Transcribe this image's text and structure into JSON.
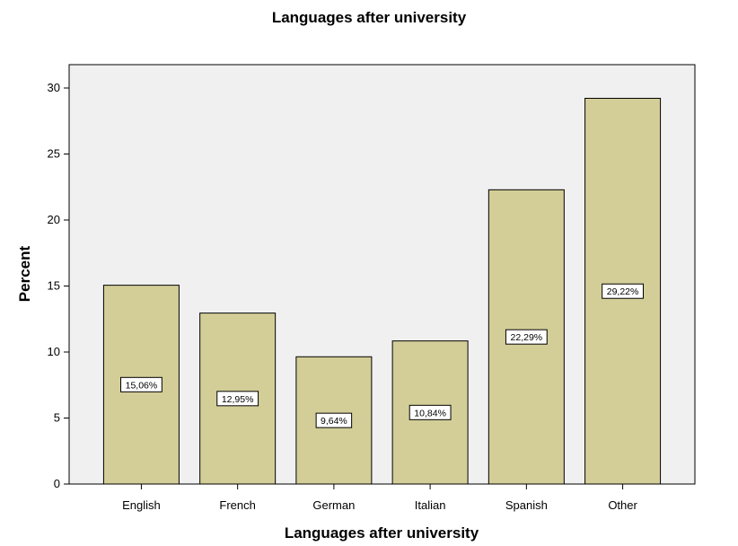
{
  "colors": {
    "background": "#ffffff",
    "plot_background": "#f0f0f0",
    "bar_fill": "#d3ce98",
    "bar_stroke": "#000000",
    "label_box_fill": "#ffffff",
    "text": "#000000"
  },
  "chart_data": {
    "type": "bar",
    "title": "Languages after university",
    "xlabel": "Languages after university",
    "ylabel": "Percent",
    "categories": [
      "English",
      "French",
      "German",
      "Italian",
      "Spanish",
      "Other"
    ],
    "values": [
      15.06,
      12.95,
      9.64,
      10.84,
      22.29,
      29.22
    ],
    "data_labels": [
      "15,06%",
      "12,95%",
      "9,64%",
      "10,84%",
      "22,29%",
      "29,22%"
    ],
    "yticks": [
      "0",
      "5",
      "10",
      "15",
      "20",
      "25",
      "30"
    ],
    "ylim": [
      0,
      31.5
    ],
    "grid": false,
    "legend": "none"
  }
}
